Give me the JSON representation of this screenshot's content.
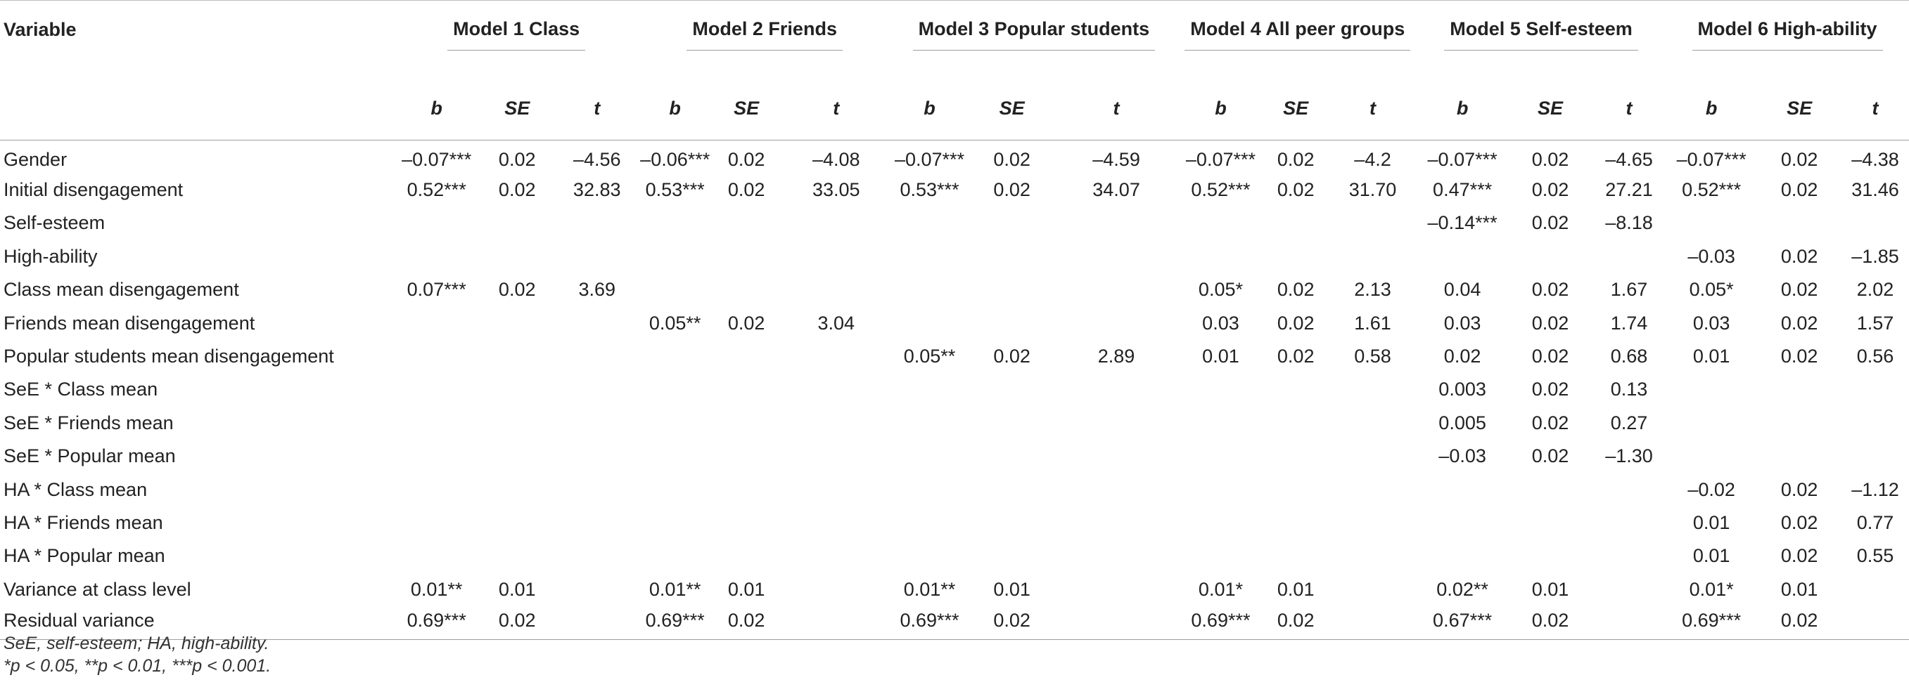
{
  "table": {
    "stub_header": "Variable",
    "models": [
      "Model 1 Class",
      "Model 2 Friends",
      "Model 3 Popular students",
      "Model 4 All peer groups",
      "Model 5 Self-esteem",
      "Model 6 High-ability"
    ],
    "subheaders": [
      "b",
      "SE",
      "t"
    ],
    "rows": [
      {
        "label": "Gender",
        "cells": [
          [
            "–0.07***",
            "0.02",
            "–4.56"
          ],
          [
            "–0.06***",
            "0.02",
            "–4.08"
          ],
          [
            "–0.07***",
            "0.02",
            "–4.59"
          ],
          [
            "–0.07***",
            "0.02",
            "–4.2"
          ],
          [
            "–0.07***",
            "0.02",
            "–4.65"
          ],
          [
            "–0.07***",
            "0.02",
            "–4.38"
          ]
        ]
      },
      {
        "label": "Initial disengagement",
        "cells": [
          [
            "0.52***",
            "0.02",
            "32.83"
          ],
          [
            "0.53***",
            "0.02",
            "33.05"
          ],
          [
            "0.53***",
            "0.02",
            "34.07"
          ],
          [
            "0.52***",
            "0.02",
            "31.70"
          ],
          [
            "0.47***",
            "0.02",
            "27.21"
          ],
          [
            "0.52***",
            "0.02",
            "31.46"
          ]
        ]
      },
      {
        "label": "Self-esteem",
        "cells": [
          [
            "",
            "",
            ""
          ],
          [
            "",
            "",
            ""
          ],
          [
            "",
            "",
            ""
          ],
          [
            "",
            "",
            ""
          ],
          [
            "–0.14***",
            "0.02",
            "–8.18"
          ],
          [
            "",
            "",
            ""
          ]
        ]
      },
      {
        "label": "High-ability",
        "cells": [
          [
            "",
            "",
            ""
          ],
          [
            "",
            "",
            ""
          ],
          [
            "",
            "",
            ""
          ],
          [
            "",
            "",
            ""
          ],
          [
            "",
            "",
            ""
          ],
          [
            "–0.03",
            "0.02",
            "–1.85"
          ]
        ]
      },
      {
        "label": "Class mean disengagement",
        "cells": [
          [
            "0.07***",
            "0.02",
            "3.69"
          ],
          [
            "",
            "",
            ""
          ],
          [
            "",
            "",
            ""
          ],
          [
            "0.05*",
            "0.02",
            "2.13"
          ],
          [
            "0.04",
            "0.02",
            "1.67"
          ],
          [
            "0.05*",
            "0.02",
            "2.02"
          ]
        ]
      },
      {
        "label": "Friends mean disengagement",
        "cells": [
          [
            "",
            "",
            ""
          ],
          [
            "0.05**",
            "0.02",
            "3.04"
          ],
          [
            "",
            "",
            ""
          ],
          [
            "0.03",
            "0.02",
            "1.61"
          ],
          [
            "0.03",
            "0.02",
            "1.74"
          ],
          [
            "0.03",
            "0.02",
            "1.57"
          ]
        ]
      },
      {
        "label": "Popular students mean disengagement",
        "cells": [
          [
            "",
            "",
            ""
          ],
          [
            "",
            "",
            ""
          ],
          [
            "0.05**",
            "0.02",
            "2.89"
          ],
          [
            "0.01",
            "0.02",
            "0.58"
          ],
          [
            "0.02",
            "0.02",
            "0.68"
          ],
          [
            "0.01",
            "0.02",
            "0.56"
          ]
        ]
      },
      {
        "label": "SeE * Class mean",
        "cells": [
          [
            "",
            "",
            ""
          ],
          [
            "",
            "",
            ""
          ],
          [
            "",
            "",
            ""
          ],
          [
            "",
            "",
            ""
          ],
          [
            "0.003",
            "0.02",
            "0.13"
          ],
          [
            "",
            "",
            ""
          ]
        ]
      },
      {
        "label": "SeE * Friends mean",
        "cells": [
          [
            "",
            "",
            ""
          ],
          [
            "",
            "",
            ""
          ],
          [
            "",
            "",
            ""
          ],
          [
            "",
            "",
            ""
          ],
          [
            "0.005",
            "0.02",
            "0.27"
          ],
          [
            "",
            "",
            ""
          ]
        ]
      },
      {
        "label": "SeE * Popular mean",
        "cells": [
          [
            "",
            "",
            ""
          ],
          [
            "",
            "",
            ""
          ],
          [
            "",
            "",
            ""
          ],
          [
            "",
            "",
            ""
          ],
          [
            "–0.03",
            "0.02",
            "–1.30"
          ],
          [
            "",
            "",
            ""
          ]
        ]
      },
      {
        "label": "HA * Class mean",
        "cells": [
          [
            "",
            "",
            ""
          ],
          [
            "",
            "",
            ""
          ],
          [
            "",
            "",
            ""
          ],
          [
            "",
            "",
            ""
          ],
          [
            "",
            "",
            ""
          ],
          [
            "–0.02",
            "0.02",
            "–1.12"
          ]
        ]
      },
      {
        "label": "HA * Friends mean",
        "cells": [
          [
            "",
            "",
            ""
          ],
          [
            "",
            "",
            ""
          ],
          [
            "",
            "",
            ""
          ],
          [
            "",
            "",
            ""
          ],
          [
            "",
            "",
            ""
          ],
          [
            "0.01",
            "0.02",
            "0.77"
          ]
        ]
      },
      {
        "label": "HA * Popular mean",
        "cells": [
          [
            "",
            "",
            ""
          ],
          [
            "",
            "",
            ""
          ],
          [
            "",
            "",
            ""
          ],
          [
            "",
            "",
            ""
          ],
          [
            "",
            "",
            ""
          ],
          [
            "0.01",
            "0.02",
            "0.55"
          ]
        ]
      },
      {
        "label": "Variance at class level",
        "cells": [
          [
            "0.01**",
            "0.01",
            ""
          ],
          [
            "0.01**",
            "0.01",
            ""
          ],
          [
            "0.01**",
            "0.01",
            ""
          ],
          [
            "0.01*",
            "0.01",
            ""
          ],
          [
            "0.02**",
            "0.01",
            ""
          ],
          [
            "0.01*",
            "0.01",
            ""
          ]
        ]
      },
      {
        "label": "Residual variance",
        "cells": [
          [
            "0.69***",
            "0.02",
            ""
          ],
          [
            "0.69***",
            "0.02",
            ""
          ],
          [
            "0.69***",
            "0.02",
            ""
          ],
          [
            "0.69***",
            "0.02",
            ""
          ],
          [
            "0.67***",
            "0.02",
            ""
          ],
          [
            "0.69***",
            "0.02",
            ""
          ]
        ]
      }
    ],
    "notes": [
      "SeE, self-esteem; HA, high-ability.",
      "*p < 0.05, **p < 0.01, ***p < 0.001."
    ]
  }
}
